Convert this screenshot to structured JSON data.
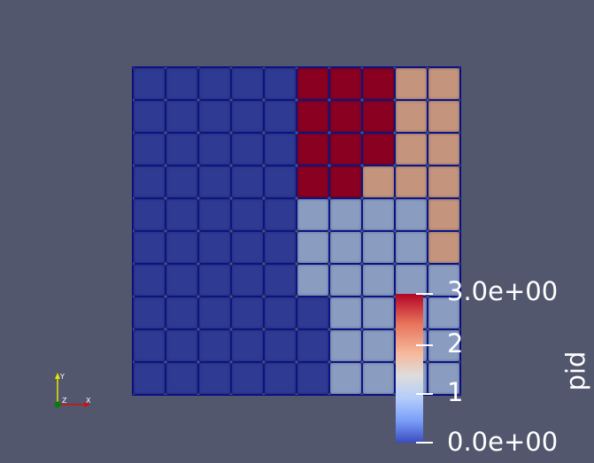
{
  "scalar_bar": {
    "title": "pid",
    "labels": [
      "3.0e+00",
      "2",
      "1",
      "0.0e+00"
    ],
    "colormap": "Cool to Warm",
    "range": [
      0,
      3
    ]
  },
  "colors": {
    "0": "#2f3b93",
    "1": "#8a9dc1",
    "2": "#c4957c",
    "3": "#8a0021",
    "background": "#52576e"
  },
  "cells": [
    [
      0,
      0,
      0,
      0,
      0,
      3,
      3,
      3,
      2,
      2
    ],
    [
      0,
      0,
      0,
      0,
      0,
      3,
      3,
      3,
      2,
      2
    ],
    [
      0,
      0,
      0,
      0,
      0,
      3,
      3,
      3,
      2,
      2
    ],
    [
      0,
      0,
      0,
      0,
      0,
      3,
      3,
      2,
      2,
      2
    ],
    [
      0,
      0,
      0,
      0,
      0,
      1,
      1,
      1,
      1,
      2
    ],
    [
      0,
      0,
      0,
      0,
      0,
      1,
      1,
      1,
      1,
      2
    ],
    [
      0,
      0,
      0,
      0,
      0,
      1,
      1,
      1,
      1,
      1
    ],
    [
      0,
      0,
      0,
      0,
      0,
      0,
      1,
      1,
      1,
      1
    ],
    [
      0,
      0,
      0,
      0,
      0,
      0,
      1,
      1,
      1,
      1
    ],
    [
      0,
      0,
      0,
      0,
      0,
      0,
      1,
      1,
      1,
      1
    ]
  ],
  "axes": {
    "x": "X",
    "y": "Y",
    "z": "Z"
  }
}
